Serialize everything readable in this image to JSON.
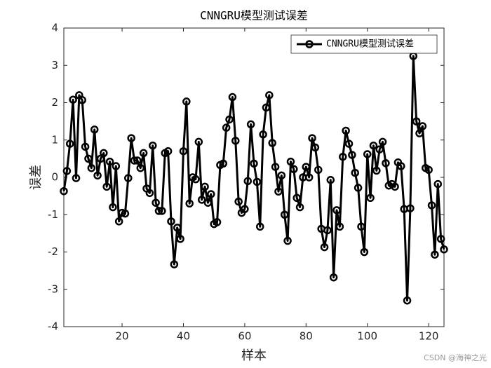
{
  "chart_data": {
    "type": "line",
    "title": "CNNGRU模型测试误差",
    "x_label": "样本",
    "y_label": "误差",
    "x": [
      1,
      2,
      3,
      4,
      5,
      6,
      7,
      8,
      9,
      10,
      11,
      12,
      13,
      14,
      15,
      16,
      17,
      18,
      19,
      20,
      21,
      22,
      23,
      24,
      25,
      26,
      27,
      28,
      29,
      30,
      31,
      32,
      33,
      34,
      35,
      36,
      37,
      38,
      39,
      40,
      41,
      42,
      43,
      44,
      45,
      46,
      47,
      48,
      49,
      50,
      51,
      52,
      53,
      54,
      55,
      56,
      57,
      58,
      59,
      60,
      61,
      62,
      63,
      64,
      65,
      66,
      67,
      68,
      69,
      70,
      71,
      72,
      73,
      74,
      75,
      76,
      77,
      78,
      79,
      80,
      81,
      82,
      83,
      84,
      85,
      86,
      87,
      88,
      89,
      90,
      91,
      92,
      93,
      94,
      95,
      96,
      97,
      98,
      99,
      100,
      101,
      102,
      103,
      104,
      105,
      106,
      107,
      108,
      109,
      110,
      111,
      112,
      113,
      114,
      115,
      116,
      117,
      118,
      119,
      120,
      121,
      122,
      123,
      124,
      125
    ],
    "series": [
      {
        "name": "CNNGRU模型测试误差",
        "color": "#000000",
        "values": [
          -0.37,
          0.17,
          0.9,
          2.08,
          -0.02,
          2.2,
          2.07,
          0.82,
          0.5,
          0.25,
          1.28,
          0.05,
          0.5,
          0.65,
          -0.25,
          0.42,
          -0.8,
          0.3,
          -1.18,
          -0.95,
          -0.97,
          -0.02,
          1.05,
          0.45,
          0.45,
          0.25,
          0.65,
          -0.3,
          -0.42,
          0.85,
          -0.68,
          -0.9,
          -0.9,
          0.65,
          0.7,
          -1.18,
          -2.33,
          -1.35,
          -1.65,
          0.7,
          2.03,
          -0.7,
          0,
          -0.05,
          0.95,
          -0.6,
          -0.25,
          -0.68,
          -0.45,
          -1.25,
          -1.2,
          0.33,
          0.37,
          1.33,
          1.55,
          2.15,
          0.98,
          -0.65,
          -0.95,
          -0.85,
          -0.1,
          1.42,
          0.37,
          -0.12,
          -1.32,
          1.15,
          1.87,
          2.2,
          0.92,
          0.28,
          -0.38,
          0.05,
          -1,
          -1.7,
          0.42,
          0.22,
          -0.55,
          -0.8,
          0,
          0.28,
          0,
          1.05,
          0.8,
          0.2,
          -1.38,
          -1.87,
          -1.42,
          -0.07,
          -2.68,
          -0.88,
          -1.32,
          0.55,
          1.25,
          0.9,
          0.6,
          0.12,
          -0.28,
          -1.32,
          -2.0,
          0.62,
          -0.55,
          0.85,
          0.18,
          0.75,
          0.95,
          0.38,
          -0.22,
          -0.18,
          -0.25,
          0.4,
          0.3,
          -0.85,
          -3.3,
          -0.83,
          3.25,
          1.5,
          1.18,
          1.37,
          0.25,
          0.2,
          -0.75,
          -2.07,
          -0.18,
          -1.65,
          -1.93
        ]
      }
    ],
    "xlim": [
      1,
      125
    ],
    "xticks": [
      20,
      40,
      60,
      80,
      100,
      120
    ],
    "ylim": [
      -4,
      4
    ],
    "yticks": [
      -4,
      -3,
      -2,
      -1,
      0,
      1,
      2,
      3,
      4
    ],
    "legend": "upper right",
    "marker": "circle"
  },
  "watermark": "CSDN @海神之光"
}
